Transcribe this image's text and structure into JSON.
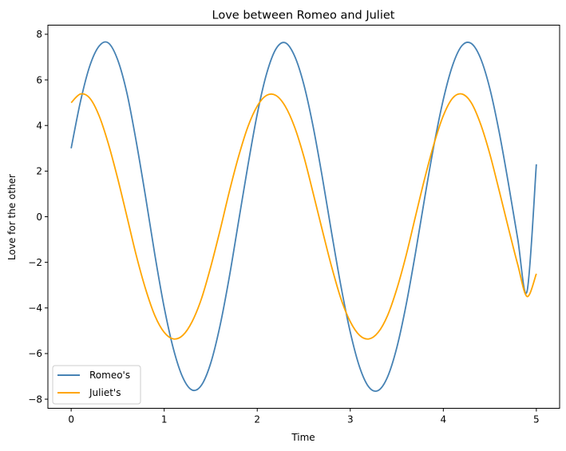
{
  "chart_data": {
    "type": "line",
    "title": "Love between Romeo and Juliet",
    "xlabel": "Time",
    "ylabel": "Love for the other",
    "xlim": [
      -0.25,
      5.25
    ],
    "ylim": [
      -8.4,
      8.4
    ],
    "xticks": [
      0,
      1,
      2,
      3,
      4,
      5
    ],
    "yticks": [
      -8,
      -6,
      -4,
      -2,
      0,
      2,
      4,
      6,
      8
    ],
    "grid": false,
    "legend_position": "lower left",
    "series": [
      {
        "name": "Romeo's",
        "color": "#4682b4",
        "x": [
          0,
          0.1,
          0.2,
          0.3,
          0.4,
          0.5,
          0.6,
          0.7,
          0.8,
          0.9,
          1.0,
          1.1,
          1.2,
          1.3,
          1.4,
          1.5,
          1.6,
          1.7,
          1.8,
          1.9,
          2.0,
          2.1,
          2.2,
          2.3,
          2.4,
          2.5,
          2.6,
          2.7,
          2.8,
          2.9,
          3.0,
          3.1,
          3.2,
          3.3,
          3.4,
          3.5,
          3.6,
          3.7,
          3.8,
          3.9,
          4.0,
          4.1,
          4.2,
          4.3,
          4.4,
          4.5,
          4.6,
          4.7,
          4.8,
          4.9,
          5.0
        ],
        "y": [
          3.0,
          5.05,
          6.61,
          7.48,
          7.62,
          6.88,
          5.41,
          3.28,
          0.87,
          -1.68,
          -3.98,
          -5.81,
          -7.05,
          -7.6,
          -7.39,
          -6.42,
          -4.78,
          -2.64,
          -0.19,
          2.25,
          4.5,
          6.26,
          7.35,
          7.63,
          7.06,
          5.81,
          3.97,
          1.72,
          -0.72,
          -3.05,
          -5.06,
          -6.59,
          -7.47,
          -7.62,
          -7.03,
          -5.74,
          -3.87,
          -1.61,
          0.83,
          3.15,
          5.14,
          6.64,
          7.5,
          7.6,
          6.95,
          5.62,
          3.72,
          1.45,
          -0.98,
          -3.27,
          2.3
        ]
      },
      {
        "name": "Juliet's",
        "color": "#ffa500",
        "x": [
          0,
          0.1,
          0.2,
          0.3,
          0.4,
          0.5,
          0.6,
          0.7,
          0.8,
          0.9,
          1.0,
          1.1,
          1.2,
          1.3,
          1.4,
          1.5,
          1.6,
          1.7,
          1.8,
          1.9,
          2.0,
          2.1,
          2.2,
          2.3,
          2.4,
          2.5,
          2.6,
          2.7,
          2.8,
          2.9,
          3.0,
          3.1,
          3.2,
          3.3,
          3.4,
          3.5,
          3.6,
          3.7,
          3.8,
          3.9,
          4.0,
          4.1,
          4.2,
          4.3,
          4.4,
          4.5,
          4.6,
          4.7,
          4.8,
          4.9,
          5.0
        ],
        "y": [
          5.0,
          5.38,
          5.2,
          4.43,
          3.2,
          1.68,
          0.0,
          -1.7,
          -3.17,
          -4.34,
          -5.07,
          -5.36,
          -5.2,
          -4.6,
          -3.6,
          -2.2,
          -0.6,
          1.1,
          2.65,
          3.95,
          4.85,
          5.32,
          5.32,
          4.85,
          3.95,
          2.65,
          1.05,
          -0.6,
          -2.2,
          -3.6,
          -4.6,
          -5.2,
          -5.36,
          -5.07,
          -4.34,
          -3.17,
          -1.7,
          0.0,
          1.68,
          3.2,
          4.43,
          5.2,
          5.38,
          5.0,
          4.07,
          2.75,
          1.15,
          -0.5,
          -2.1,
          -3.5,
          -2.5
        ]
      }
    ]
  }
}
